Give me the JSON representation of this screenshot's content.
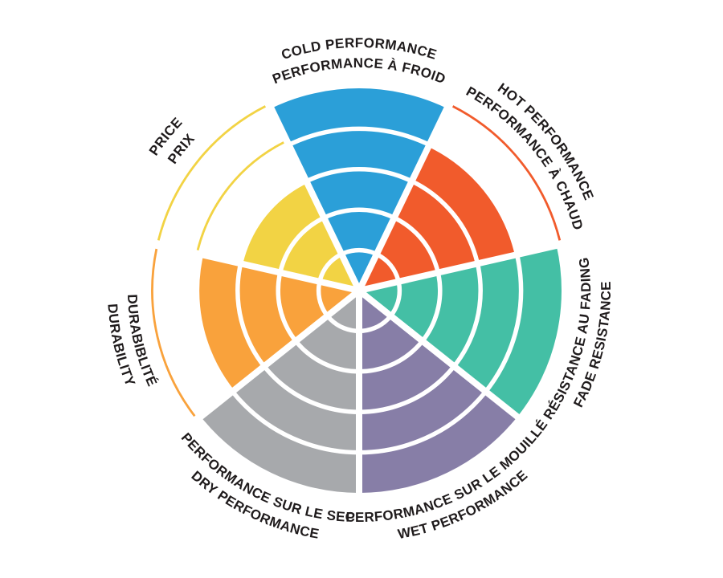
{
  "chart_data": {
    "type": "pie",
    "subtype": "segmented-rating-wheel",
    "description": "Circular tire rating wheel: 7 equal sectors, each filled from center to its rating level out of 5 concentric rings. Thin outer arcs mark unfilled levels.",
    "max_level": 5,
    "levels": [
      1,
      2,
      3,
      4,
      5
    ],
    "direction": "clockwise",
    "start_angle_deg": 90,
    "grid": "white ring separators and white radial spokes",
    "legend_position": "none",
    "segments": [
      {
        "id": "cold-performance",
        "label_line1": "COLD PERFORMANCE",
        "label_line2": "PERFORMANCE À FROID",
        "value": 5,
        "color": "#2B9FD8",
        "label_style": "top",
        "unfilled_level_markers": []
      },
      {
        "id": "hot-performance",
        "label_line1": "HOT PERFORMANCE",
        "label_line2": "PERFORMANCE À CHAUD",
        "value": 4,
        "color": "#F15B2C",
        "label_style": "top",
        "unfilled_level_markers": [
          5
        ]
      },
      {
        "id": "fade-resistance",
        "label_line1": "RÉSISTANCE AU FADING",
        "label_line2": "FADE RESISTANCE",
        "value": 5,
        "color": "#44BFA5",
        "label_style": "arc",
        "unfilled_level_markers": []
      },
      {
        "id": "wet-performance",
        "label_line1": "PERFORMANCE SUR LE MOUILLÉ",
        "label_line2": "WET PERFORMANCE",
        "value": 5,
        "color": "#877EA7",
        "label_style": "arc",
        "unfilled_level_markers": []
      },
      {
        "id": "dry-performance",
        "label_line1": "PERFORMANCE SUR LE SEC",
        "label_line2": "DRY PERFORMANCE",
        "value": 5,
        "color": "#A7A9AC",
        "label_style": "arc",
        "unfilled_level_markers": []
      },
      {
        "id": "durability",
        "label_line1": "DURABIBLITÉ",
        "label_line2": "DURABILITY",
        "value": 4,
        "color": "#F9A23C",
        "label_style": "arc",
        "unfilled_level_markers": [
          5
        ]
      },
      {
        "id": "price",
        "label_line1": "PRICE",
        "label_line2": "PRIX",
        "value": 3,
        "color": "#F2D344",
        "label_style": "top",
        "unfilled_level_markers": [
          4,
          5
        ]
      }
    ]
  }
}
